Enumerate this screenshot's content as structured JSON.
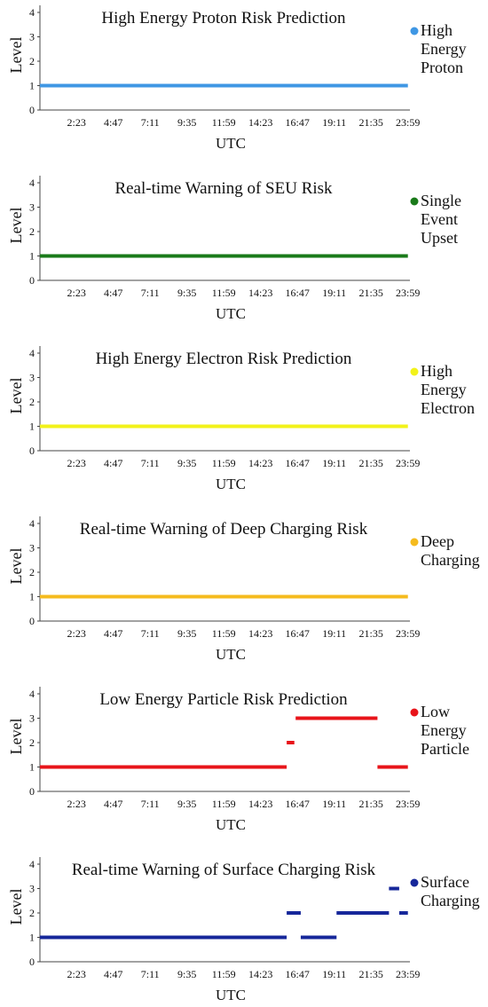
{
  "chart_data": [
    {
      "type": "line",
      "title": "High Energy Proton Risk Prediction",
      "xlabel": "UTC",
      "ylabel": "Level",
      "ylim": [
        0,
        4
      ],
      "yticks": [
        "0",
        "1",
        "2",
        "3",
        "4"
      ],
      "xticks": [
        "2:23",
        "4:47",
        "7:11",
        "9:35",
        "11:59",
        "14:23",
        "16:47",
        "19:11",
        "21:35",
        "23:59"
      ],
      "legend": {
        "label_lines": [
          "High",
          "Energy",
          "Proton"
        ],
        "color": "#3f97e4",
        "position": "right"
      },
      "series": [
        {
          "color": "#3f97e4",
          "segments": [
            {
              "x": [
                "0:00",
                "23:59"
              ],
              "level": 1
            }
          ]
        }
      ]
    },
    {
      "type": "line",
      "title": "Real-time Warning of SEU Risk",
      "xlabel": "UTC",
      "ylabel": "Level",
      "ylim": [
        0,
        4
      ],
      "yticks": [
        "0",
        "1",
        "2",
        "3",
        "4"
      ],
      "xticks": [
        "2:23",
        "4:47",
        "7:11",
        "9:35",
        "11:59",
        "14:23",
        "16:47",
        "19:11",
        "21:35",
        "23:59"
      ],
      "legend": {
        "label_lines": [
          "Single",
          "Event",
          "Upset"
        ],
        "color": "#1a7a1a",
        "position": "right"
      },
      "series": [
        {
          "color": "#1a7a1a",
          "segments": [
            {
              "x": [
                "0:00",
                "23:59"
              ],
              "level": 1
            }
          ]
        }
      ]
    },
    {
      "type": "line",
      "title": "High Energy Electron Risk Prediction",
      "xlabel": "UTC",
      "ylabel": "Level",
      "ylim": [
        0,
        4
      ],
      "yticks": [
        "0",
        "1",
        "2",
        "3",
        "4"
      ],
      "xticks": [
        "2:23",
        "4:47",
        "7:11",
        "9:35",
        "11:59",
        "14:23",
        "16:47",
        "19:11",
        "21:35",
        "23:59"
      ],
      "legend": {
        "label_lines": [
          "High",
          "Energy",
          "Electron"
        ],
        "color": "#f2f21a",
        "position": "right"
      },
      "series": [
        {
          "color": "#f2f21a",
          "segments": [
            {
              "x": [
                "0:00",
                "23:59"
              ],
              "level": 1
            }
          ]
        }
      ]
    },
    {
      "type": "line",
      "title": "Real-time Warning of Deep Charging Risk",
      "xlabel": "UTC",
      "ylabel": "Level",
      "ylim": [
        0,
        4
      ],
      "yticks": [
        "0",
        "1",
        "2",
        "3",
        "4"
      ],
      "xticks": [
        "2:23",
        "4:47",
        "7:11",
        "9:35",
        "11:59",
        "14:23",
        "16:47",
        "19:11",
        "21:35",
        "23:59"
      ],
      "legend": {
        "label_lines": [
          "Deep",
          "Charging"
        ],
        "color": "#f5bb1e",
        "position": "right"
      },
      "series": [
        {
          "color": "#f5bb1e",
          "segments": [
            {
              "x": [
                "0:00",
                "23:59"
              ],
              "level": 1
            }
          ]
        }
      ]
    },
    {
      "type": "line",
      "title": "Low Energy Particle Risk Prediction",
      "xlabel": "UTC",
      "ylabel": "Level",
      "ylim": [
        0,
        4
      ],
      "yticks": [
        "0",
        "1",
        "2",
        "3",
        "4"
      ],
      "xticks": [
        "2:23",
        "4:47",
        "7:11",
        "9:35",
        "11:59",
        "14:23",
        "16:47",
        "19:11",
        "21:35",
        "23:59"
      ],
      "legend": {
        "label_lines": [
          "Low",
          "Energy",
          "Particle"
        ],
        "color": "#e8141a",
        "position": "right"
      },
      "series": [
        {
          "color": "#e8141a",
          "segments": [
            {
              "x": [
                "0:00",
                "16:05"
              ],
              "level": 1
            },
            {
              "x": [
                "16:05",
                "16:35"
              ],
              "level": 2
            },
            {
              "x": [
                "16:40",
                "22:00"
              ],
              "level": 3
            },
            {
              "x": [
                "22:00",
                "23:59"
              ],
              "level": 1
            }
          ]
        }
      ]
    },
    {
      "type": "line",
      "title": "Real-time Warning of Surface Charging Risk",
      "xlabel": "UTC",
      "ylabel": "Level",
      "ylim": [
        0,
        4
      ],
      "yticks": [
        "0",
        "1",
        "2",
        "3",
        "4"
      ],
      "xticks": [
        "2:23",
        "4:47",
        "7:11",
        "9:35",
        "11:59",
        "14:23",
        "16:47",
        "19:11",
        "21:35",
        "23:59"
      ],
      "legend": {
        "label_lines": [
          "Surface",
          "Charging"
        ],
        "color": "#16279a",
        "position": "right"
      },
      "series": [
        {
          "color": "#16279a",
          "segments": [
            {
              "x": [
                "0:00",
                "16:05"
              ],
              "level": 1
            },
            {
              "x": [
                "16:05",
                "17:00"
              ],
              "level": 2
            },
            {
              "x": [
                "17:00",
                "19:20"
              ],
              "level": 1
            },
            {
              "x": [
                "19:20",
                "22:45"
              ],
              "level": 2
            },
            {
              "x": [
                "22:45",
                "23:25"
              ],
              "level": 3
            },
            {
              "x": [
                "23:25",
                "23:59"
              ],
              "level": 2
            }
          ]
        }
      ]
    }
  ]
}
